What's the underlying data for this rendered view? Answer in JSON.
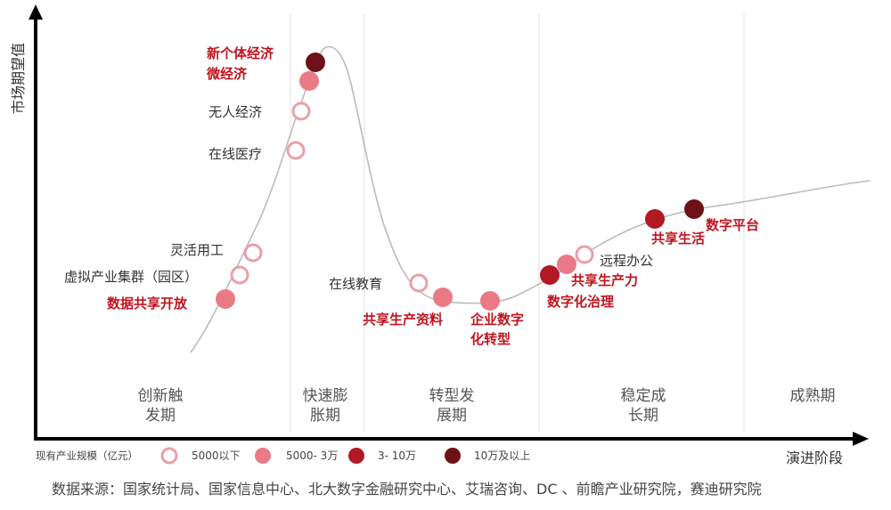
{
  "axes": {
    "y_label": "市场期望值",
    "x_label": "演进阶段"
  },
  "stages": [
    {
      "id": "s1",
      "lines": [
        "创新触",
        "发期"
      ]
    },
    {
      "id": "s2",
      "lines": [
        "快速膨",
        "胀期"
      ]
    },
    {
      "id": "s3",
      "lines": [
        "转型发",
        "展期"
      ]
    },
    {
      "id": "s4",
      "lines": [
        "稳定成",
        "长期"
      ]
    },
    {
      "id": "s5",
      "lines": [
        "成熟期"
      ]
    }
  ],
  "categories": {
    "c1": {
      "label": "5000以下",
      "style": "ring",
      "color": "#e9a0a7"
    },
    "c2": {
      "label": "5000- 3万",
      "style": "filled",
      "color": "#ea7a86"
    },
    "c3": {
      "label": "3- 10万",
      "style": "filled",
      "color": "#b11925"
    },
    "c4": {
      "label": "10万及以上",
      "style": "filled",
      "color": "#6f1218"
    }
  },
  "legend_title": "现有产业规模（亿元）",
  "colors": {
    "label_highlight": "#c0141f",
    "label_normal": "#333333",
    "axis": "#000000",
    "curve": "#bbbbbb",
    "divider": "#e2e2e2"
  },
  "items": [
    {
      "id": "shujugongxiang",
      "lines": [
        "数据共享开放"
      ],
      "cat": "c2",
      "bold": true
    },
    {
      "id": "xuni",
      "lines": [
        "虚拟产业集群（园区）"
      ],
      "cat": "c1",
      "bold": false
    },
    {
      "id": "linghuo",
      "lines": [
        "灵活用工"
      ],
      "cat": "c1",
      "bold": false
    },
    {
      "id": "zaixianyiliao",
      "lines": [
        "在线医疗"
      ],
      "cat": "c1",
      "bold": false
    },
    {
      "id": "wurenjingji",
      "lines": [
        "无人经济"
      ],
      "cat": "c1",
      "bold": false
    },
    {
      "id": "weijingji",
      "lines": [
        "微经济"
      ],
      "cat": "c2",
      "bold": true
    },
    {
      "id": "xingeti",
      "lines": [
        "新个体经济"
      ],
      "cat": "c4",
      "bold": true
    },
    {
      "id": "zaixianjiaoyu",
      "lines": [
        "在线教育"
      ],
      "cat": "c1",
      "bold": false
    },
    {
      "id": "gongxiangziliao",
      "lines": [
        "共享生产资料"
      ],
      "cat": "c2",
      "bold": true
    },
    {
      "id": "qiyezhuanxing",
      "lines": [
        "企业数字",
        "化转型"
      ],
      "cat": "c2",
      "bold": true
    },
    {
      "id": "shuzihuazhili",
      "lines": [
        "数字化治理"
      ],
      "cat": "c3",
      "bold": true
    },
    {
      "id": "gongxiangshengchanli",
      "lines": [
        "共享生产力"
      ],
      "cat": "c2",
      "bold": true
    },
    {
      "id": "yuanchengbangong",
      "lines": [
        "远程办公"
      ],
      "cat": "c1",
      "bold": false
    },
    {
      "id": "gongxiangshenghuo",
      "lines": [
        "共享生活"
      ],
      "cat": "c3",
      "bold": true
    },
    {
      "id": "shuzipingtai",
      "lines": [
        "数字平台"
      ],
      "cat": "c4",
      "bold": true
    }
  ],
  "source": "数据来源：国家统计局、国家信息中心、北大数字金融研究中心、艾瑞咨询、DC 、前瞻产业研究院，赛迪研究院"
}
